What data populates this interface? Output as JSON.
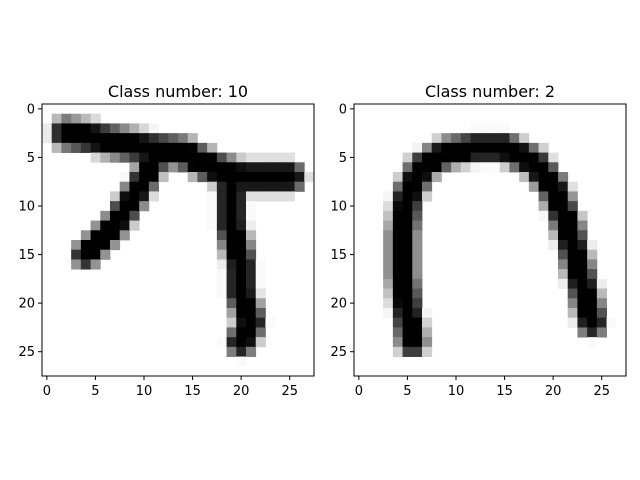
{
  "chart_data": [
    {
      "type": "heatmap",
      "title": "Class number: 10",
      "grid_size": 28,
      "cmap": "gray_r",
      "xlim": [
        -0.5,
        27.5
      ],
      "ylim": [
        27.5,
        -0.5
      ],
      "xticks": [
        0,
        5,
        10,
        15,
        20,
        25
      ],
      "yticks": [
        0,
        5,
        10,
        15,
        20,
        25
      ],
      "xlabel": "",
      "ylabel": "",
      "grid": false,
      "strokes": [
        {
          "points": [
            [
              2,
              2.5
            ],
            [
              5,
              3
            ],
            [
              10,
              4
            ],
            [
              14,
              4.5
            ],
            [
              17,
              6
            ],
            [
              20,
              7
            ],
            [
              25,
              7
            ]
          ],
          "width": 1.6
        },
        {
          "points": [
            [
              11,
              5.5
            ],
            [
              9,
              9
            ],
            [
              7,
              12
            ],
            [
              5,
              14
            ],
            [
              4,
              15
            ]
          ],
          "width": 1.4
        },
        {
          "points": [
            [
              19,
              8
            ],
            [
              19,
              12
            ],
            [
              20,
              16
            ],
            [
              20,
              19
            ],
            [
              21,
              22
            ],
            [
              20,
              24
            ]
          ],
          "width": 1.5
        }
      ]
    },
    {
      "type": "heatmap",
      "title": "Class number: 2",
      "grid_size": 28,
      "cmap": "gray_r",
      "xlim": [
        -0.5,
        27.5
      ],
      "ylim": [
        27.5,
        -0.5
      ],
      "xticks": [
        0,
        5,
        10,
        15,
        20,
        25
      ],
      "yticks": [
        0,
        5,
        10,
        15,
        20,
        25
      ],
      "xlabel": "",
      "ylabel": "",
      "grid": false,
      "strokes": [
        {
          "points": [
            [
              5.5,
              24
            ],
            [
              5,
              21
            ],
            [
              4.5,
              17
            ],
            [
              4.5,
              13
            ],
            [
              5,
              9
            ],
            [
              6.5,
              6
            ],
            [
              9,
              4.5
            ],
            [
              12,
              4
            ],
            [
              15,
              4
            ],
            [
              18,
              5.5
            ],
            [
              20,
              8
            ],
            [
              21.5,
              12
            ],
            [
              22.5,
              16
            ],
            [
              23.5,
              20
            ],
            [
              24,
              22
            ]
          ],
          "width": 1.5
        }
      ]
    }
  ]
}
